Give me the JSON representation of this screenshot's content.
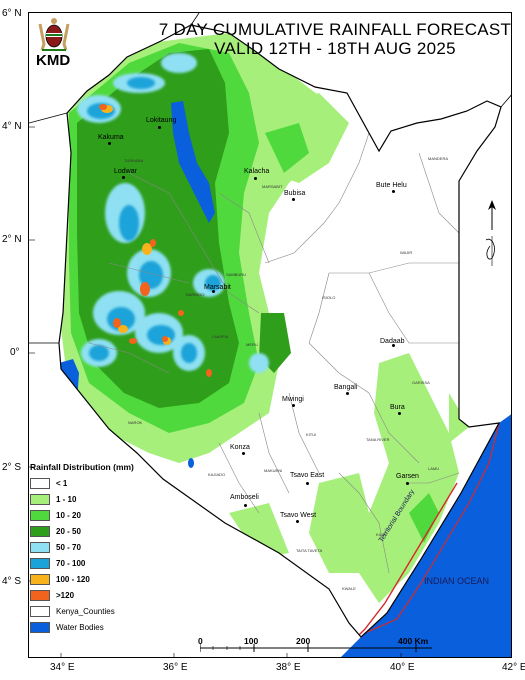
{
  "title": {
    "line1": "7 DAY CUMULATIVE RAINFALL FORECAST",
    "line2": "VALID  12TH - 18TH AUG 2025"
  },
  "logo": {
    "text": "KMD",
    "icon": "coat-of-arms-icon"
  },
  "latitude_labels": [
    "6° N",
    "4° N",
    "2° N",
    "0°",
    "2° S",
    "4° S"
  ],
  "longitude_labels": [
    "34° E",
    "36° E",
    "38° E",
    "40° E",
    "42° E"
  ],
  "places": [
    {
      "name": "Lokitaung"
    },
    {
      "name": "Kakuma"
    },
    {
      "name": "Lodwar"
    },
    {
      "name": "Kalacha"
    },
    {
      "name": "Bubisa"
    },
    {
      "name": "Bute Helu"
    },
    {
      "name": "Marsabit"
    },
    {
      "name": "Dadaab"
    },
    {
      "name": "Bangali"
    },
    {
      "name": "Mwingi"
    },
    {
      "name": "Bura"
    },
    {
      "name": "Konza"
    },
    {
      "name": "Tsavo East"
    },
    {
      "name": "Garsen"
    },
    {
      "name": "Amboseli"
    },
    {
      "name": "Tsavo West"
    }
  ],
  "counties": [
    "MANDERA",
    "MARSABIT",
    "WAJIR",
    "ISIOLO",
    "GARISSA",
    "TANA RIVER",
    "KITUI",
    "MAKUENI",
    "KAJIADO",
    "KILIFI",
    "KWALE",
    "LAMU",
    "TAITA TAVETA",
    "TURKANA",
    "SAMBURU",
    "BARINGO",
    "LAIKIPIA",
    "MERU",
    "NAROK"
  ],
  "water_labels": {
    "ocean": "INDIAN OCEAN",
    "boundary": "Territorial Boundary"
  },
  "legend": {
    "title": "Rainfall Distribution (mm)",
    "items": [
      {
        "label": "< 1",
        "color": "#ffffff"
      },
      {
        "label": "1 - 10",
        "color": "#a6ef7a"
      },
      {
        "label": "10 - 20",
        "color": "#4fd93c"
      },
      {
        "label": "20 - 50",
        "color": "#2f9e1b"
      },
      {
        "label": "50 - 70",
        "color": "#8fe0f2"
      },
      {
        "label": "70 - 100",
        "color": "#1aa3d9"
      },
      {
        "label": "100 - 120",
        "color": "#f7b21c"
      },
      {
        "label": ">120",
        "color": "#f2631e"
      },
      {
        "label": "Kenya_Counties",
        "color": "#ffffff"
      },
      {
        "label": "Water Bodies",
        "color": "#0a5fdc"
      }
    ]
  },
  "scale": {
    "labels": [
      "0",
      "100",
      "200",
      "400 Km"
    ]
  },
  "north_arrow": {
    "label": "N",
    "icon": "north-arrow-icon"
  },
  "colors": {
    "ocean": "#0a5fdc",
    "land_dry": "#ffffff",
    "boundary_red": "#d42a2a",
    "county_border": "#888888"
  }
}
